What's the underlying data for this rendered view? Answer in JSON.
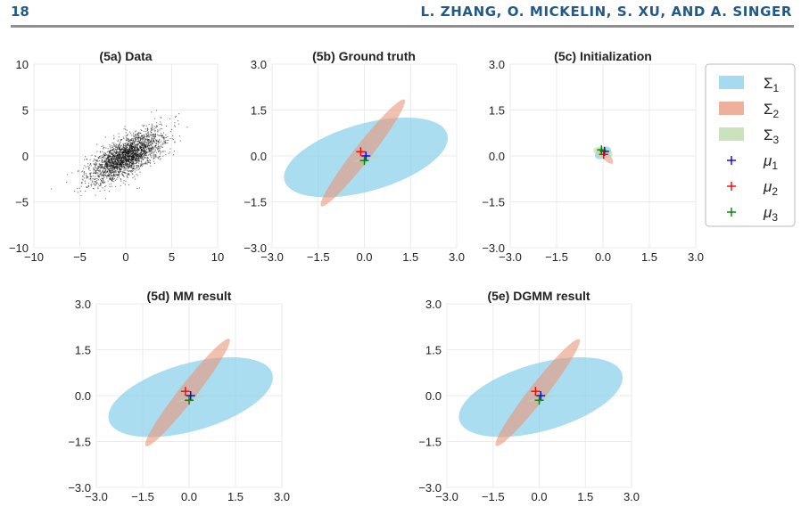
{
  "header": {
    "page_number": "18",
    "authors": "L. ZHANG, O. MICKELIN, S. XU, AND A. SINGER"
  },
  "colors": {
    "sigma1": "#87CEEB",
    "sigma2": "#E9967A",
    "sigma3": "#B9D9A5",
    "mu1": "#0000FF",
    "mu2": "#FF0000",
    "mu3": "#008000"
  },
  "legend": {
    "placement": "right",
    "entries": [
      {
        "symbol": "patch",
        "key": "sigma1",
        "label": "Σ",
        "sub": "1"
      },
      {
        "symbol": "patch",
        "key": "sigma2",
        "label": "Σ",
        "sub": "2"
      },
      {
        "symbol": "patch",
        "key": "sigma3",
        "label": "Σ",
        "sub": "3"
      },
      {
        "symbol": "plus",
        "key": "mu1",
        "label": "μ",
        "sub": "1"
      },
      {
        "symbol": "plus",
        "key": "mu2",
        "label": "μ",
        "sub": "2"
      },
      {
        "symbol": "plus",
        "key": "mu3",
        "label": "μ",
        "sub": "3"
      }
    ]
  },
  "chart_data": [
    {
      "id": "5a",
      "type": "scatter",
      "title": "(5a) Data",
      "xlim": [
        -10,
        10
      ],
      "ylim": [
        -10,
        10
      ],
      "xticks": [
        -10,
        -5,
        0,
        5,
        10
      ],
      "yticks": [
        -10,
        -5,
        0,
        5,
        10
      ],
      "xtick_labels": [
        "−10",
        "−5",
        "0",
        "5",
        "10"
      ],
      "ytick_labels": [
        "−10",
        "−5",
        "0",
        "5",
        "10"
      ],
      "grid": true,
      "cloud": {
        "center": [
          0,
          0
        ],
        "major_axis_angle_deg": 32,
        "sd_major": 2.2,
        "sd_minor": 0.9,
        "color": "#000000"
      }
    },
    {
      "id": "5b",
      "type": "ellipse",
      "title": "(5b) Ground truth",
      "xlim": [
        -3,
        3
      ],
      "ylim": [
        -3,
        3
      ],
      "xticks": [
        -3,
        -1.5,
        0,
        1.5,
        3
      ],
      "yticks": [
        -3,
        -1.5,
        0,
        1.5,
        3
      ],
      "xtick_labels": [
        "−3.0",
        "−1.5",
        "0.0",
        "1.5",
        "3.0"
      ],
      "ytick_labels": [
        "−3.0",
        "−1.5",
        "0.0",
        "1.5",
        "3.0"
      ],
      "grid": true,
      "ellipses": [
        {
          "name": "Σ1",
          "cx": 0.05,
          "cy": -0.05,
          "rx": 2.75,
          "ry": 1.1,
          "angle_deg": 16,
          "color": "#87CEEB"
        },
        {
          "name": "Σ2",
          "cx": -0.05,
          "cy": 0.1,
          "rx": 2.2,
          "ry": 0.28,
          "angle_deg": 52,
          "color": "#E9967A"
        },
        {
          "name": "Σ3",
          "cx": 0.05,
          "cy": -0.1,
          "rx": 0.45,
          "ry": 0.04,
          "angle_deg": 12,
          "color": "#B9D9A5"
        }
      ],
      "means": [
        {
          "name": "μ1",
          "x": 0.05,
          "y": 0.0,
          "color": "#0000FF"
        },
        {
          "name": "μ2",
          "x": -0.12,
          "y": 0.14,
          "color": "#FF0000"
        },
        {
          "name": "μ3",
          "x": 0.0,
          "y": -0.15,
          "color": "#008000"
        }
      ]
    },
    {
      "id": "5c",
      "type": "ellipse",
      "title": "(5c) Initialization",
      "xlim": [
        -3,
        3
      ],
      "ylim": [
        -3,
        3
      ],
      "xticks": [
        -3,
        -1.5,
        0,
        1.5,
        3
      ],
      "yticks": [
        -3,
        -1.5,
        0,
        1.5,
        3
      ],
      "xtick_labels": [
        "−3.0",
        "−1.5",
        "0.0",
        "1.5",
        "3.0"
      ],
      "ytick_labels": [
        "−3.0",
        "−1.5",
        "0.0",
        "1.5",
        "3.0"
      ],
      "grid": true,
      "ellipses": [
        {
          "name": "Σ1",
          "cx": 0.0,
          "cy": 0.1,
          "rx": 0.28,
          "ry": 0.18,
          "angle_deg": 30,
          "color": "#87CEEB"
        },
        {
          "name": "Σ2",
          "cx": 0.1,
          "cy": 0.0,
          "rx": 0.32,
          "ry": 0.12,
          "angle_deg": -50,
          "color": "#E9967A"
        },
        {
          "name": "Σ3",
          "cx": 0.0,
          "cy": 0.12,
          "rx": 0.32,
          "ry": 0.16,
          "angle_deg": -15,
          "color": "#B9D9A5"
        }
      ],
      "means": [
        {
          "name": "μ1",
          "x": 0.05,
          "y": 0.15,
          "color": "#0000FF"
        },
        {
          "name": "μ2",
          "x": 0.02,
          "y": 0.05,
          "color": "#FF0000"
        },
        {
          "name": "μ3",
          "x": -0.05,
          "y": 0.2,
          "color": "#008000"
        }
      ]
    },
    {
      "id": "5d",
      "type": "ellipse",
      "title": "(5d) MM result",
      "xlim": [
        -3,
        3
      ],
      "ylim": [
        -3,
        3
      ],
      "xticks": [
        -3,
        -1.5,
        0,
        1.5,
        3
      ],
      "yticks": [
        -3,
        -1.5,
        0,
        1.5,
        3
      ],
      "xtick_labels": [
        "−3.0",
        "−1.5",
        "0.0",
        "1.5",
        "3.0"
      ],
      "ytick_labels": [
        "−3.0",
        "−1.5",
        "0.0",
        "1.5",
        "3.0"
      ],
      "grid": true,
      "ellipses": [
        {
          "name": "Σ1",
          "cx": 0.05,
          "cy": -0.05,
          "rx": 2.75,
          "ry": 1.1,
          "angle_deg": 16,
          "color": "#87CEEB"
        },
        {
          "name": "Σ2",
          "cx": -0.05,
          "cy": 0.1,
          "rx": 2.2,
          "ry": 0.28,
          "angle_deg": 52,
          "color": "#E9967A"
        },
        {
          "name": "Σ3",
          "cx": 0.05,
          "cy": -0.1,
          "rx": 0.45,
          "ry": 0.04,
          "angle_deg": 12,
          "color": "#B9D9A5"
        }
      ],
      "means": [
        {
          "name": "μ1",
          "x": 0.05,
          "y": 0.0,
          "color": "#0000FF"
        },
        {
          "name": "μ2",
          "x": -0.12,
          "y": 0.14,
          "color": "#FF0000"
        },
        {
          "name": "μ3",
          "x": 0.0,
          "y": -0.15,
          "color": "#008000"
        }
      ]
    },
    {
      "id": "5e",
      "type": "ellipse",
      "title": "(5e) DGMM result",
      "xlim": [
        -3,
        3
      ],
      "ylim": [
        -3,
        3
      ],
      "xticks": [
        -3,
        -1.5,
        0,
        1.5,
        3
      ],
      "yticks": [
        -3,
        -1.5,
        0,
        1.5,
        3
      ],
      "xtick_labels": [
        "−3.0",
        "−1.5",
        "0.0",
        "1.5",
        "3.0"
      ],
      "ytick_labels": [
        "−3.0",
        "−1.5",
        "0.0",
        "1.5",
        "3.0"
      ],
      "grid": true,
      "ellipses": [
        {
          "name": "Σ1",
          "cx": 0.05,
          "cy": -0.05,
          "rx": 2.75,
          "ry": 1.1,
          "angle_deg": 16,
          "color": "#87CEEB"
        },
        {
          "name": "Σ2",
          "cx": -0.05,
          "cy": 0.1,
          "rx": 2.2,
          "ry": 0.28,
          "angle_deg": 52,
          "color": "#E9967A"
        },
        {
          "name": "Σ3",
          "cx": 0.05,
          "cy": -0.1,
          "rx": 0.45,
          "ry": 0.04,
          "angle_deg": 12,
          "color": "#B9D9A5"
        }
      ],
      "means": [
        {
          "name": "μ1",
          "x": 0.05,
          "y": 0.0,
          "color": "#0000FF"
        },
        {
          "name": "μ2",
          "x": -0.12,
          "y": 0.14,
          "color": "#FF0000"
        },
        {
          "name": "μ3",
          "x": 0.0,
          "y": -0.15,
          "color": "#008000"
        }
      ]
    }
  ]
}
